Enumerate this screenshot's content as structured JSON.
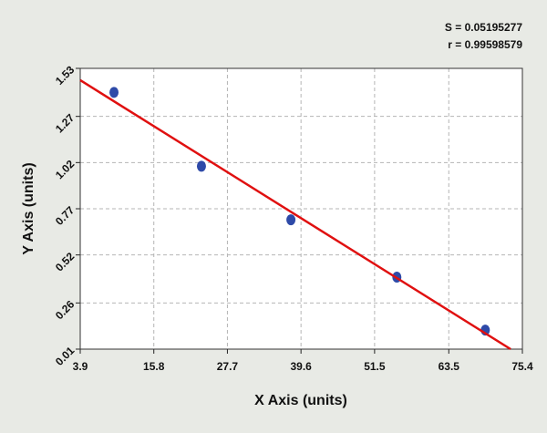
{
  "chart_data": {
    "type": "scatter",
    "x_label": "X Axis (units)",
    "y_label": "Y Axis (units)",
    "annotations": [
      "S = 0.05195277",
      "r = 0.99598579"
    ],
    "series": [
      {
        "style": "markers",
        "color": "#2e4aa8",
        "x": [
          9.36,
          23.5,
          37.97,
          55.1,
          69.4
        ],
        "values": [
          1.4,
          1.0,
          0.71,
          0.4,
          0.113
        ]
      },
      {
        "style": "line",
        "color": "#e01010",
        "x": [
          3.9,
          73.5
        ],
        "values": [
          1.466,
          0.01
        ]
      }
    ],
    "xlim": [
      3.9,
      75.4
    ],
    "xticks": [
      3.9,
      15.8,
      27.7,
      39.6,
      51.5,
      63.5,
      75.4
    ],
    "ylim": [
      0.01,
      1.53
    ],
    "yticks": [
      0.01,
      0.26,
      0.52,
      0.77,
      1.02,
      1.27,
      1.53
    ],
    "grid": true
  }
}
